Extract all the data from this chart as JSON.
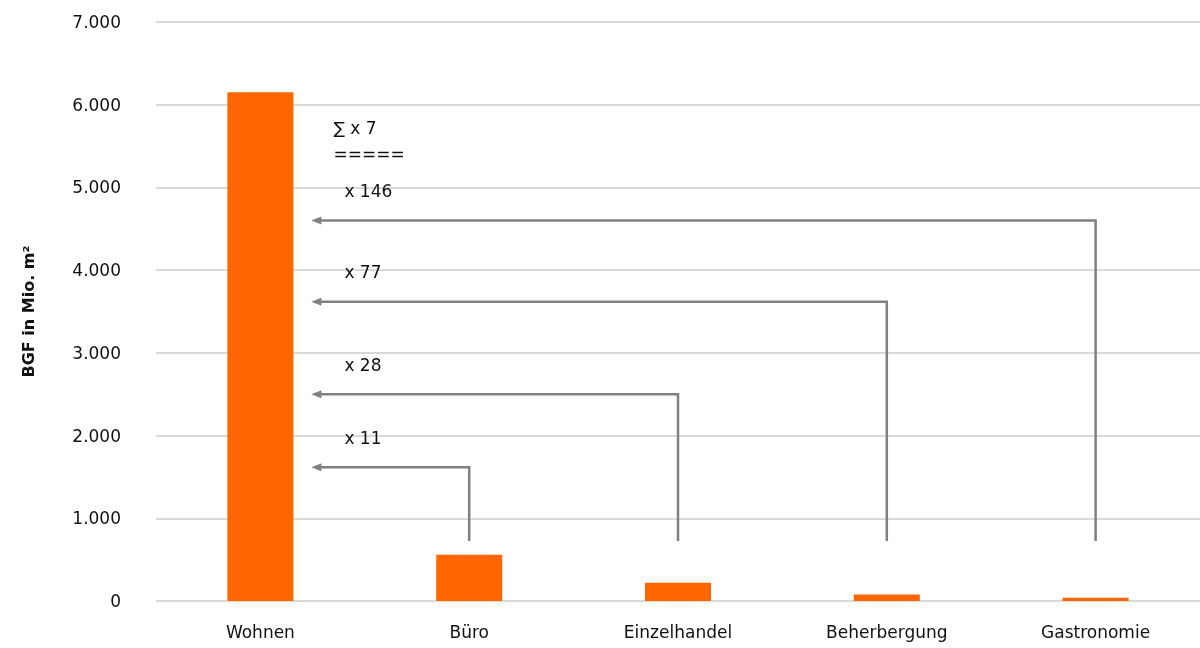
{
  "chart_data": {
    "type": "bar",
    "ylabel": "BGF in Mio. m²",
    "categories": [
      "Wohnen",
      "Büro",
      "Einzelhandel",
      "Beherbergung",
      "Gastronomie"
    ],
    "values": [
      6150,
      560,
      220,
      80,
      40
    ],
    "color": "#ff6600",
    "ylim": [
      0,
      7000
    ],
    "yticks": [
      {
        "value": 0,
        "label": "0"
      },
      {
        "value": 1000,
        "label": "1.000"
      },
      {
        "value": 2000,
        "label": "2.000"
      },
      {
        "value": 3000,
        "label": "3.000"
      },
      {
        "value": 4000,
        "label": "4.000"
      },
      {
        "value": 5000,
        "label": "5.000"
      },
      {
        "value": 6000,
        "label": "6.000"
      },
      {
        "value": 7000,
        "label": "7.000"
      }
    ],
    "grid": "y",
    "annotations": [
      "x 11",
      "x 28",
      "x 77",
      "x 146",
      "∑ x 7\n====="
    ]
  }
}
